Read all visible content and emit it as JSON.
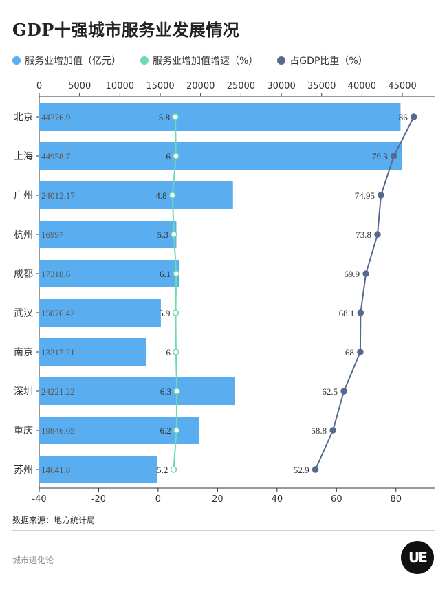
{
  "page": {
    "title": "GDP十强城市服务业发展情况",
    "source": "数据来源：地方统计局",
    "footer": "城市进化论",
    "logo_text": "UE"
  },
  "colors": {
    "bar": "#5aaef0",
    "growth": "#6fd9b0",
    "share": "#556a90"
  },
  "chart_data": {
    "type": "bar",
    "orientation": "horizontal",
    "categories": [
      "北京",
      "上海",
      "广州",
      "杭州",
      "成都",
      "武汉",
      "南京",
      "深圳",
      "重庆",
      "苏州"
    ],
    "series": [
      {
        "name": "服务业增加值（亿元）",
        "type": "bar",
        "axis": "top",
        "values": [
          44776.9,
          44958.7,
          24012.17,
          16997,
          17318.6,
          15076.42,
          13217.21,
          24221.22,
          19846.05,
          14641.8
        ],
        "labels": [
          "44776.9",
          "44958.7",
          "24012.17",
          "16997",
          "17318.6",
          "15076.42",
          "13217.21",
          "24221.22",
          "19846.05",
          "14641.8"
        ]
      },
      {
        "name": "服务业增加值增速（%）",
        "type": "line",
        "axis": "bottom",
        "values": [
          5.8,
          6,
          4.8,
          5.3,
          6.1,
          5.9,
          6,
          6.3,
          6.2,
          5.2
        ],
        "labels": [
          "5.8",
          "6",
          "4.8",
          "5.3",
          "6.1",
          "5.9",
          "6",
          "6.3",
          "6.2",
          "5.2"
        ]
      },
      {
        "name": "占GDP比重（%）",
        "type": "line",
        "axis": "bottom",
        "values": [
          86,
          79.3,
          74.95,
          73.8,
          69.9,
          68.1,
          68,
          62.5,
          58.8,
          52.9
        ],
        "labels": [
          "86",
          "79.3",
          "74.95",
          "73.8",
          "69.9",
          "68.1",
          "68",
          "62.5",
          "58.8",
          "52.9"
        ]
      }
    ],
    "top_axis": {
      "range": [
        0,
        49000
      ],
      "ticks": [
        "0",
        "5000",
        "10000",
        "15000",
        "20000",
        "25000",
        "30000",
        "35000",
        "40000",
        "45000"
      ],
      "tick_values": [
        0,
        5000,
        10000,
        15000,
        20000,
        25000,
        30000,
        35000,
        40000,
        45000
      ]
    },
    "bottom_axis": {
      "range": [
        -40,
        93
      ],
      "ticks": [
        "-40",
        "-20",
        "0",
        "20",
        "40",
        "60",
        "80"
      ],
      "tick_values": [
        -40,
        -20,
        0,
        20,
        40,
        60,
        80
      ]
    }
  }
}
